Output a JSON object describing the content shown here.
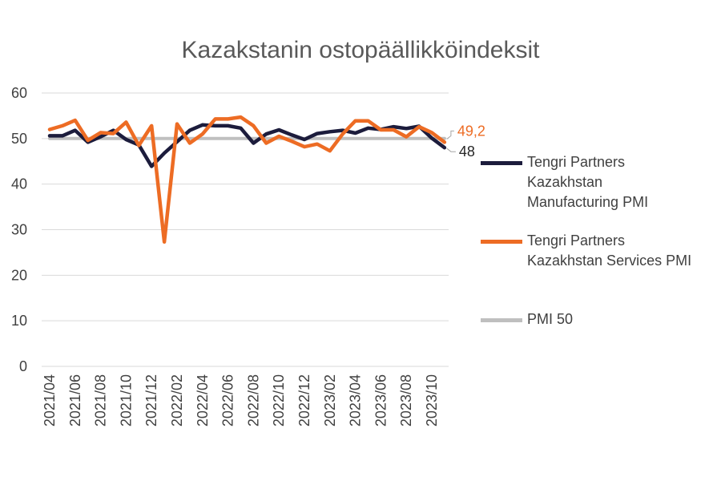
{
  "chart_data": {
    "type": "line",
    "title": "Kazakstanin ostopäällikköindeksit",
    "xlabel": "",
    "ylabel": "",
    "ylim": [
      0,
      60
    ],
    "yticks": [
      "0",
      "10",
      "20",
      "30",
      "40",
      "50",
      "60"
    ],
    "grid": true,
    "legend_position": "right",
    "x": [
      "2021/04",
      "2021/05",
      "2021/06",
      "2021/07",
      "2021/08",
      "2021/09",
      "2021/10",
      "2021/11",
      "2021/12",
      "2022/01",
      "2022/02",
      "2022/03",
      "2022/04",
      "2022/05",
      "2022/06",
      "2022/07",
      "2022/08",
      "2022/09",
      "2022/10",
      "2022/11",
      "2022/12",
      "2023/01",
      "2023/02",
      "2023/03",
      "2023/04",
      "2023/05",
      "2023/06",
      "2023/07",
      "2023/08",
      "2023/09",
      "2023/10",
      "2023/11"
    ],
    "xtick_labels": [
      "2021/04",
      "2021/06",
      "2021/08",
      "2021/10",
      "2021/12",
      "2022/02",
      "2022/04",
      "2022/06",
      "2022/08",
      "2022/10",
      "2022/12",
      "2023/02",
      "2023/04",
      "2023/06",
      "2023/08",
      "2023/10"
    ],
    "series": [
      {
        "name": "Tengri Partners\nKazakhstan\nManufacturing PMI",
        "color": "#1c1c3c",
        "values": [
          50.6,
          50.6,
          51.8,
          49.2,
          50.4,
          51.8,
          49.8,
          48.6,
          43.9,
          46.8,
          49.3,
          51.8,
          53.0,
          52.8,
          52.8,
          52.3,
          49.0,
          51.0,
          51.9,
          50.8,
          49.8,
          51.1,
          51.5,
          51.8,
          51.2,
          52.3,
          52.0,
          52.6,
          52.2,
          52.7,
          50.1,
          48.0
        ],
        "end_label": "48"
      },
      {
        "name": "Tengri Partners\nKazakhstan Services PMI",
        "color": "#ed6c24",
        "values": [
          52.0,
          52.8,
          54.0,
          49.6,
          51.3,
          51.1,
          53.6,
          48.5,
          52.8,
          27.3,
          53.2,
          49.0,
          51.0,
          54.3,
          54.3,
          54.7,
          52.8,
          49.0,
          50.5,
          49.4,
          48.2,
          48.8,
          47.3,
          51.0,
          53.9,
          53.9,
          51.9,
          51.9,
          50.4,
          52.6,
          51.3,
          49.2
        ],
        "end_label": "49,2"
      },
      {
        "name": "PMI 50",
        "color": "#bfbfbf",
        "values": [
          50,
          50,
          50,
          50,
          50,
          50,
          50,
          50,
          50,
          50,
          50,
          50,
          50,
          50,
          50,
          50,
          50,
          50,
          50,
          50,
          50,
          50,
          50,
          50,
          50,
          50,
          50,
          50,
          50,
          50,
          50,
          50
        ]
      }
    ]
  }
}
